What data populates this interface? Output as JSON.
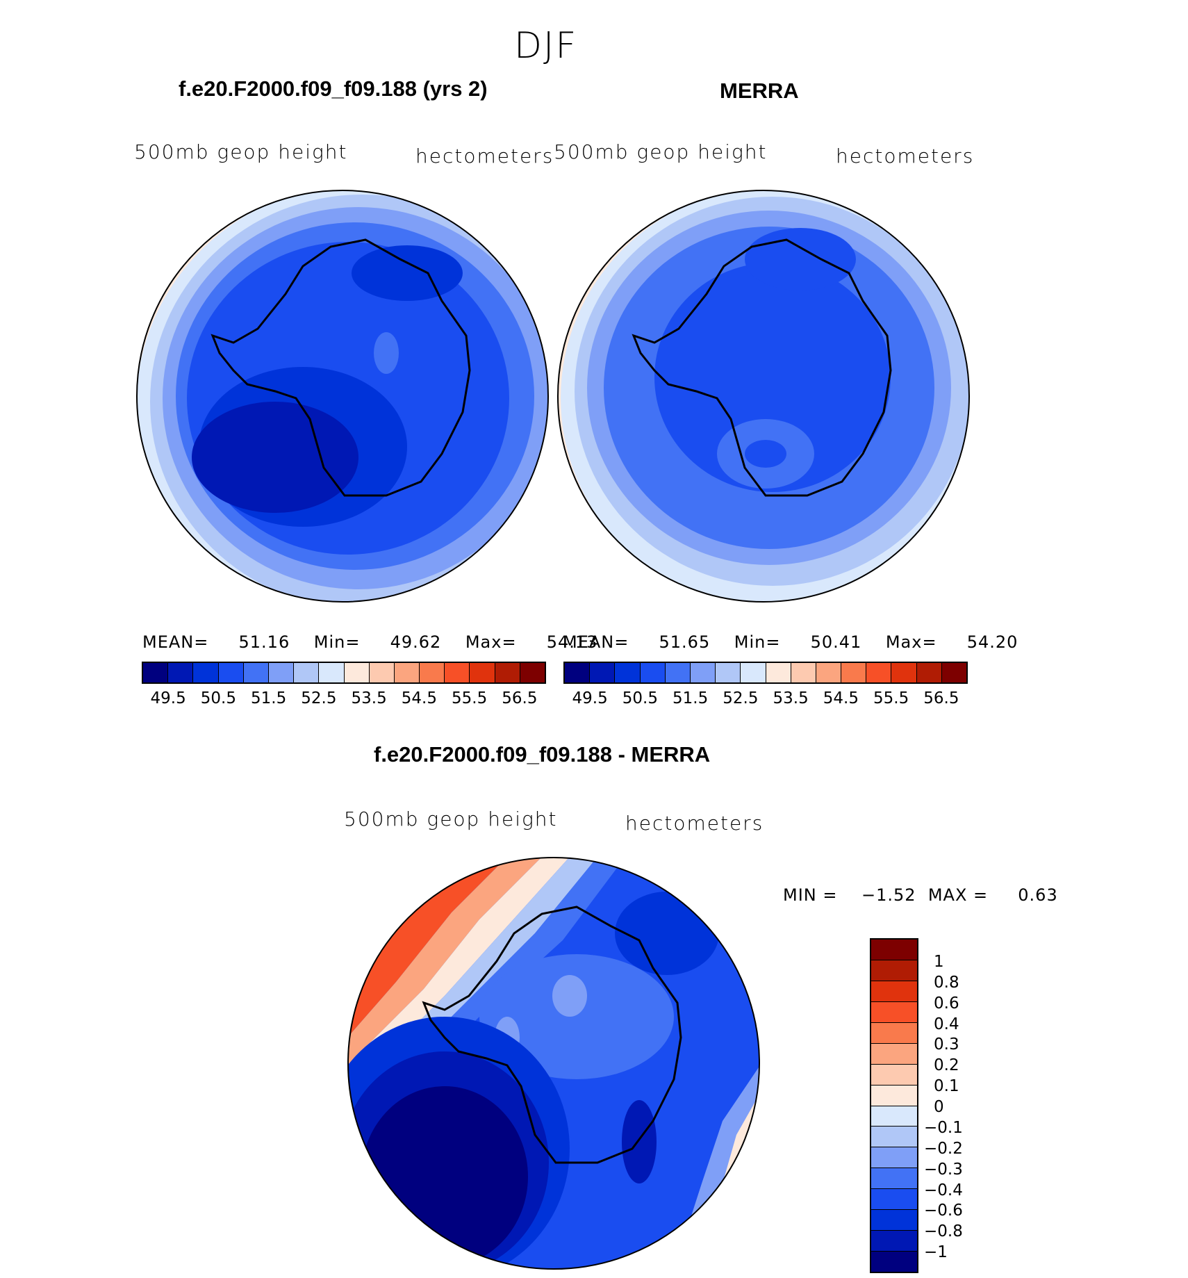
{
  "title": "DJF",
  "panels": {
    "model": {
      "title": "f.e20.F2000.f09_f09.188 (yrs 2)",
      "left_label": "500mb geop height",
      "right_label": "hectometers",
      "mean_label": "MEAN=",
      "mean": "51.16",
      "min_label": "Min=",
      "min": "49.62",
      "max_label": "Max=",
      "max": "54.13"
    },
    "obs": {
      "title": "MERRA",
      "left_label": "500mb geop height",
      "right_label": "hectometers",
      "mean_label": "MEAN=",
      "mean": "51.65",
      "min_label": "Min=",
      "min": "50.41",
      "max_label": "Max=",
      "max": "54.20"
    },
    "diff": {
      "title": "f.e20.F2000.f09_f09.188 - MERRA",
      "left_label": "500mb geop height",
      "right_label": "hectometers",
      "min_label": "MIN =",
      "min": "−1.52",
      "max_label": "MAX =",
      "max": "0.63"
    }
  },
  "colorbar_main": {
    "colors": [
      "#00007f",
      "#0018b4",
      "#0033d9",
      "#1a4df0",
      "#4272f5",
      "#7f9ff7",
      "#b0c7f7",
      "#d9e8fc",
      "#fde9dc",
      "#fdcab0",
      "#fba57f",
      "#f97a4c",
      "#f75027",
      "#e0330d",
      "#b01c04",
      "#7d0000"
    ],
    "labels": [
      "49.5",
      "50.5",
      "51.5",
      "52.5",
      "53.5",
      "54.5",
      "55.5",
      "56.5"
    ]
  },
  "colorbar_diff": {
    "colors": [
      "#7d0000",
      "#b01c04",
      "#e0330d",
      "#f75027",
      "#f97a4c",
      "#fba57f",
      "#fdcab0",
      "#fde9dc",
      "#d9e8fc",
      "#b0c7f7",
      "#7f9ff7",
      "#4272f5",
      "#1a4df0",
      "#0033d9",
      "#0018b4",
      "#00007f"
    ],
    "labels": [
      "1",
      "0.8",
      "0.6",
      "0.4",
      "0.3",
      "0.2",
      "0.1",
      "0",
      "−0.1",
      "−0.2",
      "−0.3",
      "−0.4",
      "−0.6",
      "−0.8",
      "−1"
    ]
  }
}
